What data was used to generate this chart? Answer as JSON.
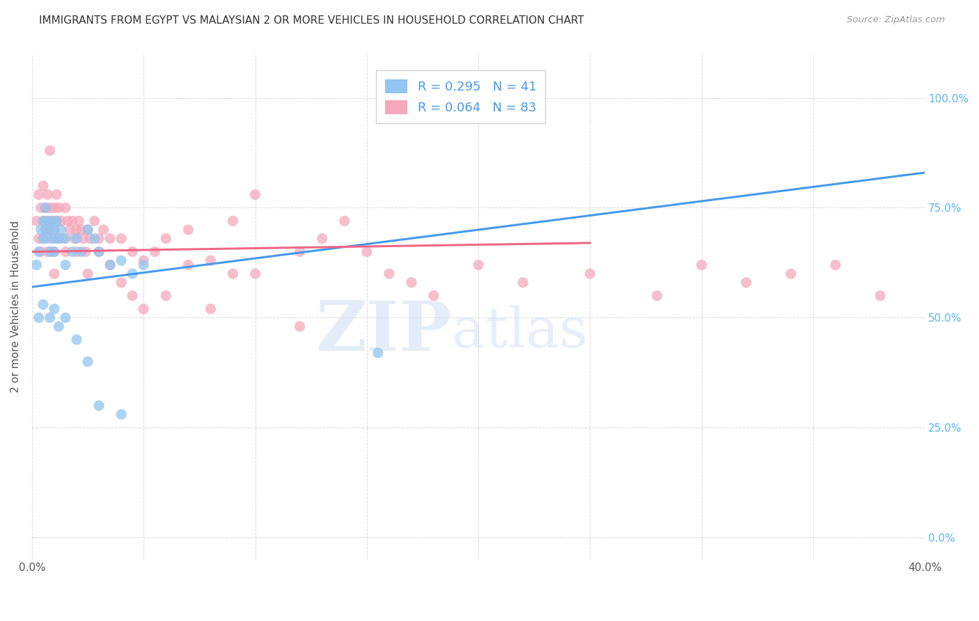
{
  "title": "IMMIGRANTS FROM EGYPT VS MALAYSIAN 2 OR MORE VEHICLES IN HOUSEHOLD CORRELATION CHART",
  "source": "Source: ZipAtlas.com",
  "ylabel": "2 or more Vehicles in Household",
  "xlim": [
    0.0,
    40.0
  ],
  "ylim": [
    -5.0,
    110.0
  ],
  "ytick_positions": [
    0.0,
    25.0,
    50.0,
    75.0,
    100.0
  ],
  "ytick_labels": [
    "0.0%",
    "25.0%",
    "50.0%",
    "75.0%",
    "100.0%"
  ],
  "xtick_positions": [
    0.0,
    5.0,
    10.0,
    15.0,
    20.0,
    25.0,
    30.0,
    35.0,
    40.0
  ],
  "xtick_labels": [
    "0.0%",
    "",
    "",
    "",
    "",
    "",
    "",
    "",
    "40.0%"
  ],
  "blue_R": "0.295",
  "blue_N": "41",
  "pink_R": "0.064",
  "pink_N": "83",
  "blue_color": "#92C5F0",
  "pink_color": "#F5A8BC",
  "blue_scatter": [
    [
      0.2,
      62.0
    ],
    [
      0.3,
      65.0
    ],
    [
      0.4,
      70.0
    ],
    [
      0.5,
      68.0
    ],
    [
      0.5,
      72.0
    ],
    [
      0.6,
      75.0
    ],
    [
      0.6,
      70.0
    ],
    [
      0.7,
      68.0
    ],
    [
      0.7,
      72.0
    ],
    [
      0.8,
      70.0
    ],
    [
      0.8,
      65.0
    ],
    [
      0.9,
      72.0
    ],
    [
      1.0,
      68.0
    ],
    [
      1.0,
      65.0
    ],
    [
      1.0,
      70.0
    ],
    [
      1.1,
      72.0
    ],
    [
      1.2,
      68.0
    ],
    [
      1.3,
      70.0
    ],
    [
      1.5,
      68.0
    ],
    [
      1.5,
      62.0
    ],
    [
      1.8,
      65.0
    ],
    [
      2.0,
      68.0
    ],
    [
      2.2,
      65.0
    ],
    [
      2.5,
      70.0
    ],
    [
      2.8,
      68.0
    ],
    [
      3.0,
      65.0
    ],
    [
      3.5,
      62.0
    ],
    [
      4.0,
      63.0
    ],
    [
      4.5,
      60.0
    ],
    [
      5.0,
      62.0
    ],
    [
      0.3,
      50.0
    ],
    [
      0.5,
      53.0
    ],
    [
      0.8,
      50.0
    ],
    [
      1.0,
      52.0
    ],
    [
      1.2,
      48.0
    ],
    [
      1.5,
      50.0
    ],
    [
      2.0,
      45.0
    ],
    [
      2.5,
      40.0
    ],
    [
      3.0,
      30.0
    ],
    [
      4.0,
      28.0
    ],
    [
      15.5,
      42.0
    ]
  ],
  "pink_scatter": [
    [
      0.2,
      72.0
    ],
    [
      0.3,
      68.0
    ],
    [
      0.3,
      78.0
    ],
    [
      0.4,
      75.0
    ],
    [
      0.4,
      65.0
    ],
    [
      0.5,
      72.0
    ],
    [
      0.5,
      68.0
    ],
    [
      0.5,
      80.0
    ],
    [
      0.6,
      75.0
    ],
    [
      0.6,
      70.0
    ],
    [
      0.7,
      78.0
    ],
    [
      0.7,
      72.0
    ],
    [
      0.7,
      65.0
    ],
    [
      0.8,
      75.0
    ],
    [
      0.8,
      70.0
    ],
    [
      0.8,
      88.0
    ],
    [
      0.9,
      72.0
    ],
    [
      0.9,
      68.0
    ],
    [
      1.0,
      75.0
    ],
    [
      1.0,
      65.0
    ],
    [
      1.0,
      70.0
    ],
    [
      1.0,
      60.0
    ],
    [
      1.1,
      72.0
    ],
    [
      1.1,
      78.0
    ],
    [
      1.2,
      68.0
    ],
    [
      1.2,
      75.0
    ],
    [
      1.3,
      72.0
    ],
    [
      1.4,
      68.0
    ],
    [
      1.5,
      75.0
    ],
    [
      1.5,
      65.0
    ],
    [
      1.6,
      72.0
    ],
    [
      1.7,
      70.0
    ],
    [
      1.8,
      72.0
    ],
    [
      1.9,
      68.0
    ],
    [
      2.0,
      70.0
    ],
    [
      2.0,
      65.0
    ],
    [
      2.1,
      72.0
    ],
    [
      2.2,
      70.0
    ],
    [
      2.3,
      68.0
    ],
    [
      2.4,
      65.0
    ],
    [
      2.5,
      70.0
    ],
    [
      2.5,
      60.0
    ],
    [
      2.6,
      68.0
    ],
    [
      2.8,
      72.0
    ],
    [
      3.0,
      68.0
    ],
    [
      3.0,
      65.0
    ],
    [
      3.2,
      70.0
    ],
    [
      3.5,
      68.0
    ],
    [
      3.5,
      62.0
    ],
    [
      4.0,
      68.0
    ],
    [
      4.0,
      58.0
    ],
    [
      4.5,
      65.0
    ],
    [
      4.5,
      55.0
    ],
    [
      5.0,
      63.0
    ],
    [
      5.0,
      52.0
    ],
    [
      5.5,
      65.0
    ],
    [
      6.0,
      55.0
    ],
    [
      6.0,
      68.0
    ],
    [
      7.0,
      62.0
    ],
    [
      7.0,
      70.0
    ],
    [
      8.0,
      63.0
    ],
    [
      8.0,
      52.0
    ],
    [
      9.0,
      60.0
    ],
    [
      9.0,
      72.0
    ],
    [
      10.0,
      60.0
    ],
    [
      10.0,
      78.0
    ],
    [
      12.0,
      48.0
    ],
    [
      12.0,
      65.0
    ],
    [
      13.0,
      68.0
    ],
    [
      14.0,
      72.0
    ],
    [
      15.0,
      65.0
    ],
    [
      16.0,
      60.0
    ],
    [
      17.0,
      58.0
    ],
    [
      18.0,
      55.0
    ],
    [
      20.0,
      62.0
    ],
    [
      22.0,
      58.0
    ],
    [
      25.0,
      60.0
    ],
    [
      28.0,
      55.0
    ],
    [
      30.0,
      62.0
    ],
    [
      32.0,
      58.0
    ],
    [
      34.0,
      60.0
    ],
    [
      36.0,
      62.0
    ],
    [
      38.0,
      55.0
    ]
  ],
  "blue_line": [
    [
      0.0,
      57.0
    ],
    [
      40.0,
      83.0
    ]
  ],
  "pink_line": [
    [
      0.0,
      65.0
    ],
    [
      25.0,
      67.0
    ]
  ],
  "watermark_zip": "ZIP",
  "watermark_atlas": "atlas",
  "background_color": "#ffffff",
  "grid_color": "#d8d8d8",
  "title_color": "#333333",
  "axis_label_color": "#555555",
  "right_tick_color": "#5ab4f5",
  "blue_line_color": "#4499ee",
  "pink_line_color": "#ee6688",
  "legend_color": "#4499ee"
}
